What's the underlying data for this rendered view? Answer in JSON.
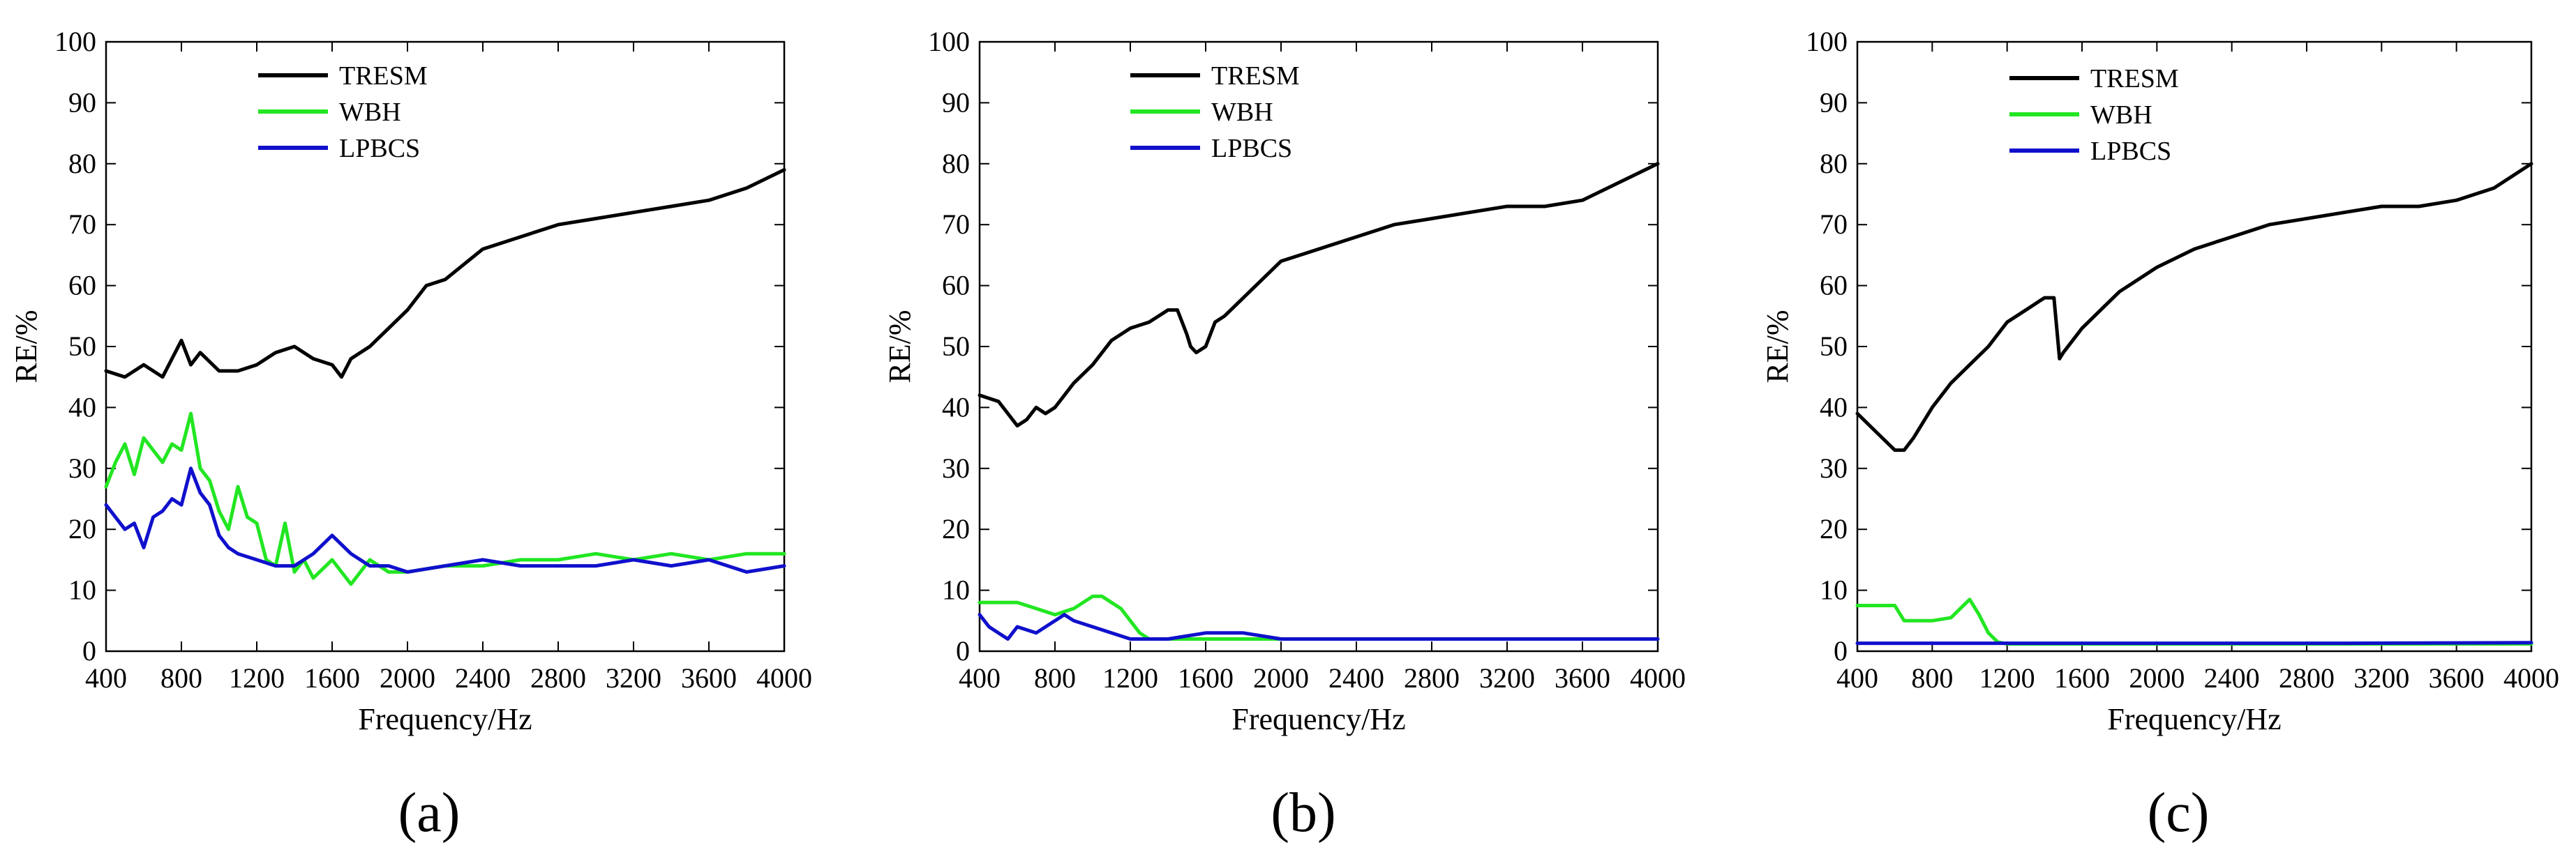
{
  "figure": {
    "panel_labels": [
      "(a)",
      "(b)",
      "(c)"
    ]
  },
  "colors": {
    "TRESM": "#000000",
    "WBH": "#22e622",
    "LPBCS": "#1010cc"
  },
  "chart_data": [
    {
      "type": "line",
      "panel": "(a)",
      "xlabel": "Frequency/Hz",
      "ylabel": "RE/%",
      "xlim": [
        400,
        4000
      ],
      "ylim": [
        0,
        100
      ],
      "xticks": [
        400,
        800,
        1200,
        1600,
        2000,
        2400,
        2800,
        3200,
        3600,
        4000
      ],
      "yticks": [
        0,
        10,
        20,
        30,
        40,
        50,
        60,
        70,
        80,
        90,
        100
      ],
      "legend": "top-left",
      "grid": false,
      "series": [
        {
          "name": "TRESM",
          "x": [
            400,
            500,
            600,
            700,
            750,
            800,
            850,
            900,
            1000,
            1100,
            1200,
            1300,
            1400,
            1500,
            1600,
            1650,
            1700,
            1800,
            1900,
            2000,
            2100,
            2200,
            2400,
            2600,
            2800,
            3000,
            3200,
            3400,
            3600,
            3800,
            4000
          ],
          "y": [
            46,
            45,
            47,
            45,
            48,
            51,
            47,
            49,
            46,
            46,
            47,
            49,
            50,
            48,
            47,
            45,
            48,
            50,
            53,
            56,
            60,
            61,
            66,
            68,
            70,
            71,
            72,
            73,
            74,
            76,
            79
          ]
        },
        {
          "name": "WBH",
          "x": [
            400,
            450,
            500,
            550,
            600,
            650,
            700,
            750,
            800,
            850,
            900,
            950,
            1000,
            1050,
            1100,
            1150,
            1200,
            1250,
            1300,
            1350,
            1400,
            1450,
            1500,
            1600,
            1700,
            1800,
            1900,
            2000,
            2200,
            2400,
            2600,
            2800,
            3000,
            3200,
            3400,
            3600,
            3800,
            4000
          ],
          "y": [
            27,
            31,
            34,
            29,
            35,
            33,
            31,
            34,
            33,
            39,
            30,
            28,
            23,
            20,
            27,
            22,
            21,
            15,
            14,
            21,
            13,
            15,
            12,
            15,
            11,
            15,
            13,
            13,
            14,
            14,
            15,
            15,
            16,
            15,
            16,
            15,
            16,
            16
          ]
        },
        {
          "name": "LPBCS",
          "x": [
            400,
            450,
            500,
            550,
            600,
            650,
            700,
            750,
            800,
            850,
            900,
            950,
            1000,
            1050,
            1100,
            1200,
            1300,
            1400,
            1500,
            1600,
            1700,
            1800,
            1900,
            2000,
            2200,
            2400,
            2600,
            2800,
            3000,
            3200,
            3400,
            3600,
            3800,
            4000
          ],
          "y": [
            24,
            22,
            20,
            21,
            17,
            22,
            23,
            25,
            24,
            30,
            26,
            24,
            19,
            17,
            16,
            15,
            14,
            14,
            16,
            19,
            16,
            14,
            14,
            13,
            14,
            15,
            14,
            14,
            14,
            15,
            14,
            15,
            13,
            14
          ]
        }
      ]
    },
    {
      "type": "line",
      "panel": "(b)",
      "xlabel": "Frequency/Hz",
      "ylabel": "RE/%",
      "xlim": [
        400,
        4000
      ],
      "ylim": [
        0,
        100
      ],
      "xticks": [
        400,
        800,
        1200,
        1600,
        2000,
        2400,
        2800,
        3200,
        3600,
        4000
      ],
      "yticks": [
        0,
        10,
        20,
        30,
        40,
        50,
        60,
        70,
        80,
        90,
        100
      ],
      "legend": "top-center",
      "grid": false,
      "series": [
        {
          "name": "TRESM",
          "x": [
            400,
            500,
            550,
            600,
            650,
            700,
            750,
            800,
            900,
            1000,
            1100,
            1200,
            1300,
            1400,
            1450,
            1500,
            1520,
            1550,
            1600,
            1650,
            1700,
            1800,
            2000,
            2200,
            2400,
            2600,
            2800,
            3000,
            3200,
            3400,
            3600,
            3800,
            4000
          ],
          "y": [
            42,
            41,
            39,
            37,
            38,
            40,
            39,
            40,
            44,
            47,
            51,
            53,
            54,
            56,
            56,
            52,
            50,
            49,
            50,
            54,
            55,
            58,
            64,
            66,
            68,
            70,
            71,
            72,
            73,
            73,
            74,
            77,
            80
          ]
        },
        {
          "name": "WBH",
          "x": [
            400,
            500,
            600,
            700,
            800,
            900,
            1000,
            1050,
            1100,
            1150,
            1200,
            1250,
            1300,
            1400,
            1500,
            1600,
            2000,
            2400,
            2800,
            3200,
            3600,
            4000
          ],
          "y": [
            8,
            8,
            8,
            7,
            6,
            7,
            9,
            9,
            8,
            7,
            5,
            3,
            2,
            2,
            2,
            2,
            2,
            2,
            2,
            2,
            2,
            2
          ]
        },
        {
          "name": "LPBCS",
          "x": [
            400,
            450,
            500,
            550,
            600,
            700,
            800,
            850,
            900,
            1000,
            1100,
            1200,
            1300,
            1400,
            1600,
            1800,
            2000,
            2400,
            2800,
            3200,
            3600,
            4000
          ],
          "y": [
            6,
            4,
            3,
            2,
            4,
            3,
            5,
            6,
            5,
            4,
            3,
            2,
            2,
            2,
            3,
            3,
            2,
            2,
            2,
            2,
            2,
            2
          ]
        }
      ]
    },
    {
      "type": "line",
      "panel": "(c)",
      "xlabel": "Frequency/Hz",
      "ylabel": "RE/%",
      "xlim": [
        400,
        4000
      ],
      "ylim": [
        0,
        100
      ],
      "xticks": [
        400,
        800,
        1200,
        1600,
        2000,
        2400,
        2800,
        3200,
        3600,
        4000
      ],
      "yticks": [
        0,
        10,
        20,
        30,
        40,
        50,
        60,
        70,
        80,
        90,
        100
      ],
      "legend": "top-center",
      "grid": false,
      "series": [
        {
          "name": "TRESM",
          "x": [
            400,
            500,
            600,
            650,
            700,
            800,
            900,
            1000,
            1100,
            1200,
            1300,
            1400,
            1450,
            1480,
            1500,
            1600,
            1700,
            1800,
            2000,
            2200,
            2400,
            2600,
            2800,
            3000,
            3200,
            3400,
            3600,
            3800,
            4000
          ],
          "y": [
            39,
            36,
            33,
            33,
            35,
            40,
            44,
            47,
            50,
            54,
            56,
            58,
            58,
            48,
            49,
            53,
            56,
            59,
            63,
            66,
            68,
            70,
            71,
            72,
            73,
            73,
            74,
            76,
            80
          ]
        },
        {
          "name": "WBH",
          "x": [
            400,
            500,
            600,
            650,
            700,
            800,
            900,
            950,
            1000,
            1050,
            1100,
            1150,
            1200,
            1300,
            2000,
            4000
          ],
          "y": [
            7.5,
            7.5,
            7.5,
            5,
            5,
            5,
            5.5,
            7,
            8.5,
            6,
            3,
            1.5,
            1.2,
            1.2,
            1.2,
            1.2
          ]
        },
        {
          "name": "LPBCS",
          "x": [
            400,
            1000,
            2000,
            3000,
            4000
          ],
          "y": [
            1.3,
            1.3,
            1.3,
            1.3,
            1.4
          ]
        }
      ]
    }
  ]
}
